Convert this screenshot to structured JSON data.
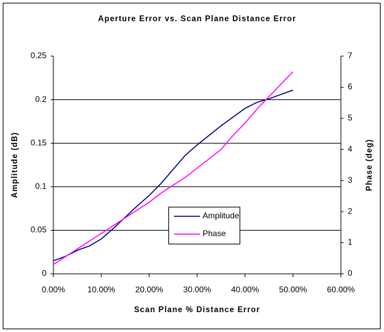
{
  "chart_data": {
    "type": "line",
    "title": "Aperture Error vs. Scan Plane Distance Error",
    "x_label": "Scan Plane % Distance Error",
    "y_label": "Amplitude (dB)",
    "y2_label": "Phase (deg)",
    "x": [
      0,
      0.025,
      0.05,
      0.075,
      0.1,
      0.125,
      0.15,
      0.175,
      0.2,
      0.225,
      0.25,
      0.275,
      0.3,
      0.325,
      0.35,
      0.375,
      0.4,
      0.425,
      0.45,
      0.475,
      0.5
    ],
    "series": [
      {
        "name": "Amplitude",
        "color": "#000080",
        "values": [
          0.015,
          0.02,
          0.027,
          0.032,
          0.04,
          0.052,
          0.065,
          0.078,
          0.09,
          0.104,
          0.12,
          0.136,
          0.148,
          0.159,
          0.17,
          0.18,
          0.19,
          0.197,
          0.201,
          0.206,
          0.211
        ]
      },
      {
        "name": "Phase",
        "color": "#ff00ff",
        "axis": "y2",
        "values": [
          0.3,
          0.55,
          0.8,
          1.05,
          1.3,
          1.55,
          1.8,
          2.05,
          2.3,
          2.6,
          2.85,
          3.1,
          3.4,
          3.7,
          4.0,
          4.45,
          4.85,
          5.3,
          5.7,
          6.1,
          6.5
        ]
      }
    ],
    "xlim": [
      0,
      0.6
    ],
    "xticks": [
      {
        "value": 0,
        "label": "0.00%"
      },
      {
        "value": 0.1,
        "label": "10.00%"
      },
      {
        "value": 0.2,
        "label": "20.00%"
      },
      {
        "value": 0.3,
        "label": "30.00%"
      },
      {
        "value": 0.4,
        "label": "40.00%"
      },
      {
        "value": 0.5,
        "label": "50.00%"
      },
      {
        "value": 0.6,
        "label": "60.00%"
      }
    ],
    "ylim": [
      0,
      0.25
    ],
    "yticks": [
      0,
      0.05,
      0.1,
      0.15,
      0.2,
      0.25
    ],
    "y2lim": [
      0,
      7
    ],
    "y2ticks": [
      0,
      1,
      2,
      3,
      4,
      5,
      6,
      7
    ],
    "grid": true
  }
}
